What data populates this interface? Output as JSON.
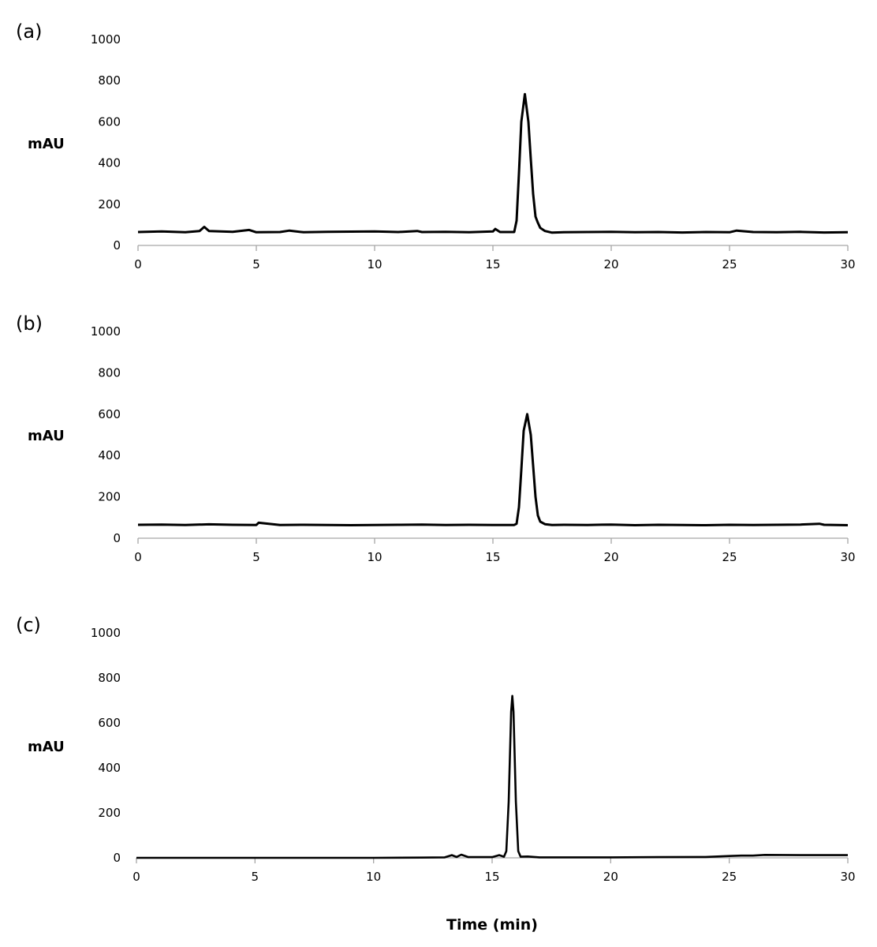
{
  "chart_data": [
    {
      "type": "line",
      "panel_label": "(a)",
      "ylabel": "mAU",
      "xlabel": "",
      "xlim": [
        0,
        30
      ],
      "ylim": [
        0,
        1000
      ],
      "xticks": [
        0,
        5,
        10,
        15,
        20,
        25,
        30
      ],
      "yticks": [
        0,
        200,
        400,
        600,
        800,
        1000
      ],
      "grid": false,
      "line_color": "#000000",
      "series": [
        {
          "x": [
            0,
            1,
            2,
            2.6,
            2.8,
            3.0,
            4,
            4.7,
            5,
            6,
            6.4,
            7,
            8,
            9,
            10,
            11,
            11.8,
            12,
            13,
            14,
            15,
            15.1,
            15.3,
            15.9,
            16.0,
            16.1,
            16.2,
            16.35,
            16.5,
            16.6,
            16.7,
            16.8,
            16.9,
            17.0,
            17.2,
            17.5,
            18,
            19,
            20,
            21,
            22,
            23,
            24,
            25,
            25.3,
            26,
            27,
            28,
            29,
            30
          ],
          "y": [
            65,
            68,
            64,
            70,
            90,
            70,
            66,
            75,
            64,
            65,
            72,
            64,
            66,
            67,
            68,
            65,
            70,
            65,
            66,
            64,
            68,
            80,
            65,
            65,
            120,
            350,
            600,
            735,
            600,
            420,
            250,
            140,
            110,
            85,
            70,
            62,
            64,
            65,
            66,
            64,
            65,
            63,
            65,
            64,
            72,
            65,
            64,
            66,
            63,
            64
          ]
        }
      ]
    },
    {
      "type": "line",
      "panel_label": "(b)",
      "ylabel": "mAU",
      "xlabel": "",
      "xlim": [
        0,
        30
      ],
      "ylim": [
        0,
        1000
      ],
      "xticks": [
        0,
        5,
        10,
        15,
        20,
        25,
        30
      ],
      "yticks": [
        0,
        200,
        400,
        600,
        800,
        1000
      ],
      "grid": false,
      "line_color": "#000000",
      "series": [
        {
          "x": [
            0,
            1,
            2,
            3,
            4,
            5,
            5.1,
            6,
            7,
            8,
            9,
            10,
            11,
            12,
            13,
            14,
            15,
            15.9,
            16.0,
            16.1,
            16.2,
            16.3,
            16.45,
            16.6,
            16.7,
            16.8,
            16.9,
            17.0,
            17.2,
            17.5,
            18,
            19,
            20,
            21,
            22,
            23,
            24,
            25,
            26,
            27,
            28,
            28.8,
            29,
            30
          ],
          "y": [
            65,
            66,
            64,
            67,
            65,
            64,
            75,
            64,
            65,
            64,
            63,
            64,
            65,
            66,
            64,
            65,
            64,
            64,
            70,
            150,
            330,
            520,
            600,
            500,
            350,
            200,
            110,
            80,
            68,
            64,
            65,
            64,
            66,
            63,
            65,
            64,
            63,
            65,
            64,
            65,
            66,
            70,
            65,
            63
          ]
        }
      ]
    },
    {
      "type": "line",
      "panel_label": "(c)",
      "ylabel": "mAU",
      "xlabel": "Time (min)",
      "xlim": [
        0,
        30
      ],
      "ylim": [
        0,
        1000
      ],
      "xticks": [
        0,
        5,
        10,
        15,
        20,
        25,
        30
      ],
      "yticks": [
        0,
        200,
        400,
        600,
        800,
        1000
      ],
      "grid": false,
      "line_color": "#000000",
      "series": [
        {
          "x": [
            0,
            2,
            4,
            6,
            8,
            10,
            12,
            13,
            13.3,
            13.5,
            13.7,
            14,
            15,
            15.3,
            15.5,
            15.6,
            15.7,
            15.8,
            15.85,
            15.9,
            16.0,
            16.1,
            16.2,
            16.5,
            17,
            18,
            20,
            22,
            24,
            25,
            25.5,
            26,
            26.5,
            28,
            30
          ],
          "y": [
            0,
            0,
            0,
            0,
            0,
            0,
            1,
            2,
            12,
            4,
            14,
            3,
            3,
            12,
            5,
            30,
            250,
            650,
            720,
            650,
            250,
            30,
            5,
            6,
            2,
            2,
            2,
            3,
            4,
            8,
            10,
            10,
            13,
            12,
            12
          ]
        }
      ]
    }
  ]
}
